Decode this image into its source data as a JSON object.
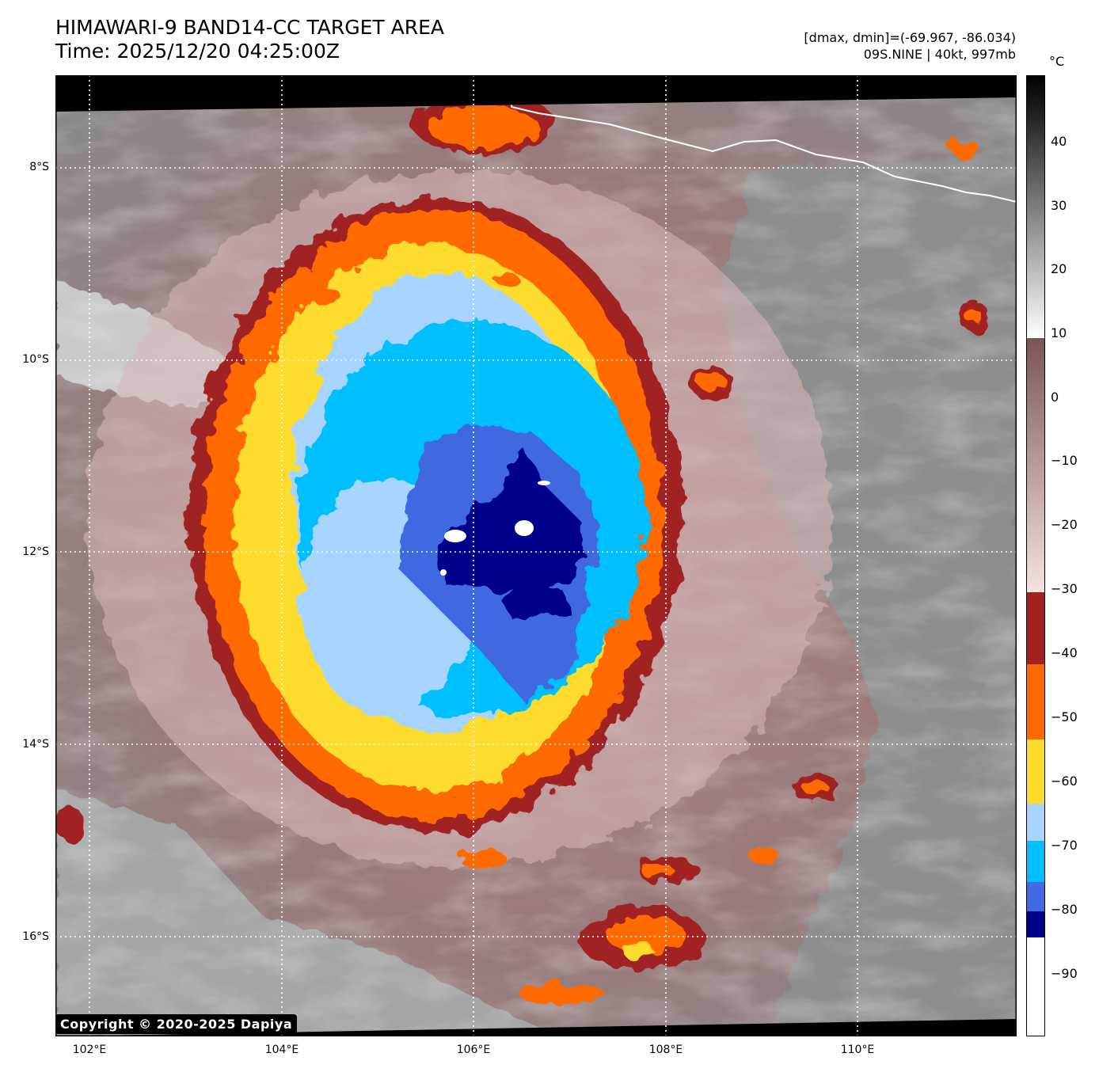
{
  "header": {
    "title": "HIMAWARI-9 BAND14-CC TARGET AREA",
    "time": "Time: 2025/12/20 04:25:00Z",
    "range": "[dmax, dmin]=(-69.967, -86.034)",
    "storm": "09S.NINE | 40kt, 997mb"
  },
  "axes": {
    "lat_labels": [
      "8°S",
      "10°S",
      "12°S",
      "14°S",
      "16°S"
    ],
    "lon_labels": [
      "102°E",
      "104°E",
      "106°E",
      "108°E",
      "110°E"
    ]
  },
  "colorbar": {
    "unit": "°C",
    "labels": [
      "40",
      "30",
      "20",
      "10",
      "0",
      "−10",
      "−20",
      "−30",
      "−40",
      "−50",
      "−60",
      "−70",
      "−80",
      "−90"
    ],
    "colors": {
      "blacktop": "#000000",
      "white10": "#ffffff",
      "brown0": "#7a5555",
      "pink": "#f3dcdc",
      "darkred": "#a12020",
      "orange": "#ff6a00",
      "yellow": "#fddc2e",
      "lightblue": "#a8d5ff",
      "cyan": "#00bfff",
      "royal": "#4169e1",
      "navy": "#00008b"
    }
  },
  "footer": {
    "copyright": "Copyright © 2020-2025 Dapiya"
  }
}
